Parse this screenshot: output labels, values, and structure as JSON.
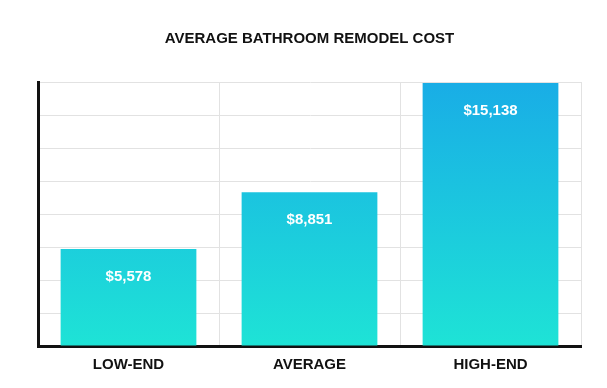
{
  "chart_data": {
    "type": "bar",
    "title": "AVERAGE BATHROOM REMODEL COST",
    "categories": [
      "LOW-END",
      "AVERAGE",
      "HIGH-END"
    ],
    "values": [
      5578,
      8851,
      15138
    ],
    "value_labels": [
      "$5,578",
      "$8,851",
      "$15,138"
    ],
    "color": "#19ade6",
    "ylim": [
      0,
      15200
    ],
    "yticks": [
      0,
      1900,
      3800,
      5700,
      7600,
      9500,
      11400,
      13300,
      15200
    ],
    "grid": true,
    "data_labels": true,
    "tick_labels": "x"
  }
}
